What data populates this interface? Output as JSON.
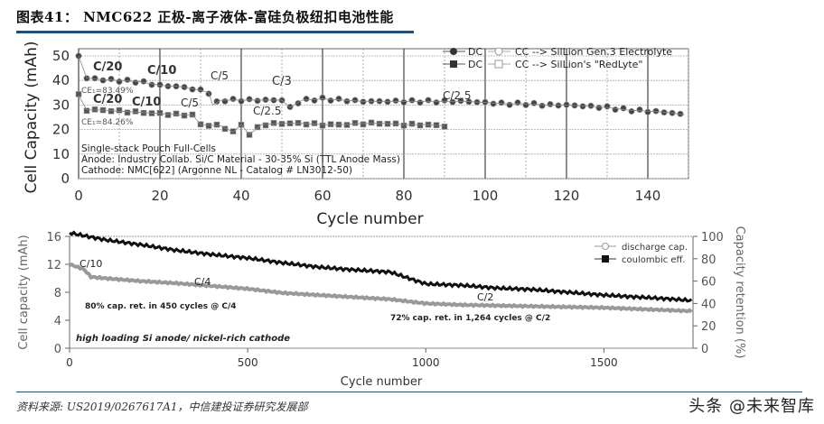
{
  "header": {
    "title": "图表41：   NMC622 正极-离子液体-富硅负极纽扣电池性能"
  },
  "footer": {
    "source": "资料来源: US2019/0267617A1，中信建投证券研究发展部",
    "watermark": "头条 @未来智库"
  },
  "chart_data": [
    {
      "type": "scatter",
      "title": "",
      "xlabel": "Cycle number",
      "ylabel": "Cell Capacity (mAh)",
      "xlim": [
        0,
        150
      ],
      "ylim": [
        0,
        50
      ],
      "x_ticks": [
        0,
        20,
        40,
        60,
        80,
        100,
        120,
        140
      ],
      "y_ticks": [
        0,
        10,
        20,
        30,
        40,
        50
      ],
      "grid": true,
      "legend_position": "top-right",
      "legend": [
        "DC  CC --> SilLion Gen.3 Electrolyte",
        "DC  CC --> SilLion's \"RedLyte\""
      ],
      "series": [
        {
          "name": "SilLion Gen.3 Electrolyte",
          "x": [
            0,
            2,
            5,
            10,
            15,
            20,
            25,
            30,
            32,
            33,
            35,
            40,
            45,
            50,
            52,
            55,
            60,
            65,
            70,
            75,
            80,
            85,
            90,
            95,
            100,
            105,
            110,
            115,
            120,
            125,
            130,
            135,
            140,
            145,
            149
          ],
          "values": [
            50,
            41,
            40.5,
            40,
            39.5,
            38,
            37.5,
            36,
            35,
            30,
            32,
            32,
            32,
            32,
            29,
            32,
            32.5,
            32,
            31.5,
            31.5,
            31.5,
            31.5,
            31.5,
            31.5,
            31,
            30.5,
            30.5,
            30,
            30,
            29.5,
            29,
            28,
            27.5,
            27,
            26
          ]
        },
        {
          "name": "SilLion's \"RedLyte\"",
          "x": [
            0,
            2,
            5,
            10,
            15,
            20,
            25,
            28,
            30,
            35,
            38,
            40,
            42,
            45,
            50,
            55,
            60,
            65,
            70,
            75,
            80,
            85,
            90
          ],
          "values": [
            34,
            28,
            28,
            27.5,
            27,
            26.5,
            26,
            26,
            22,
            21.5,
            19,
            22,
            18,
            22,
            22.5,
            22.5,
            22,
            22,
            22.5,
            22.5,
            22,
            22,
            21.5
          ]
        }
      ],
      "annotations": [
        "C/20",
        "C/10",
        "C/5",
        "C/3",
        "C/2.5",
        "C/20",
        "C/10",
        "C/5",
        "C/2.5",
        "CE1=83.49%",
        "CE1=84.26%"
      ],
      "text_block": [
        "Single-stack Pouch Full-Cells",
        "Anode: Industry Collab. Si/C Material - 30-35% Si (TTL Anode Mass)",
        "Cathode: NMC[622] (Argonne NL - Catalog # LN3012-50)"
      ]
    },
    {
      "type": "line",
      "title": "",
      "xlabel": "Cycle number",
      "ylabel": "Cell capacity (mAh)",
      "y2label": "Capacity retention (%)",
      "xlim": [
        0,
        1750
      ],
      "ylim": [
        0,
        16
      ],
      "y2lim": [
        0,
        100
      ],
      "x_ticks": [
        0,
        500,
        1000,
        1500
      ],
      "y_ticks": [
        0,
        4,
        8,
        12,
        16
      ],
      "y2_ticks": [
        0,
        20,
        40,
        60,
        80,
        100
      ],
      "legend_position": "top-right",
      "legend": [
        "discharge cap.",
        "coulombic eff."
      ],
      "series": [
        {
          "name": "coulombic eff.",
          "x": [
            0,
            100,
            200,
            300,
            400,
            500,
            600,
            700,
            800,
            900,
            1000,
            1100,
            1200,
            1300,
            1400,
            1500,
            1600,
            1700,
            1750
          ],
          "values": [
            16.5,
            15.5,
            14.8,
            14,
            13.4,
            12.9,
            12.2,
            11.6,
            11.2,
            10.9,
            9.2,
            9.0,
            8.6,
            8.4,
            8.0,
            7.6,
            7.3,
            7.0,
            6.8
          ]
        },
        {
          "name": "discharge cap.",
          "x": [
            0,
            40,
            60,
            100,
            200,
            300,
            400,
            500,
            600,
            700,
            800,
            900,
            1000,
            1100,
            1200,
            1300,
            1400,
            1500,
            1600,
            1700,
            1750
          ],
          "values": [
            12,
            11.3,
            10.2,
            10,
            9.6,
            9.3,
            8.9,
            8.5,
            7.9,
            7.6,
            7.3,
            7.0,
            6.4,
            6.2,
            6.1,
            6.0,
            5.9,
            5.8,
            5.6,
            5.4,
            5.3
          ]
        }
      ],
      "annotations": [
        "C/10",
        "C/4",
        "C/2",
        "80% cap. ret. in 450 cycles @ C/4",
        "72% cap. ret. in 1,264 cycles @ C/2",
        "high loading Si anode/ nickel-rich cathode"
      ]
    }
  ]
}
